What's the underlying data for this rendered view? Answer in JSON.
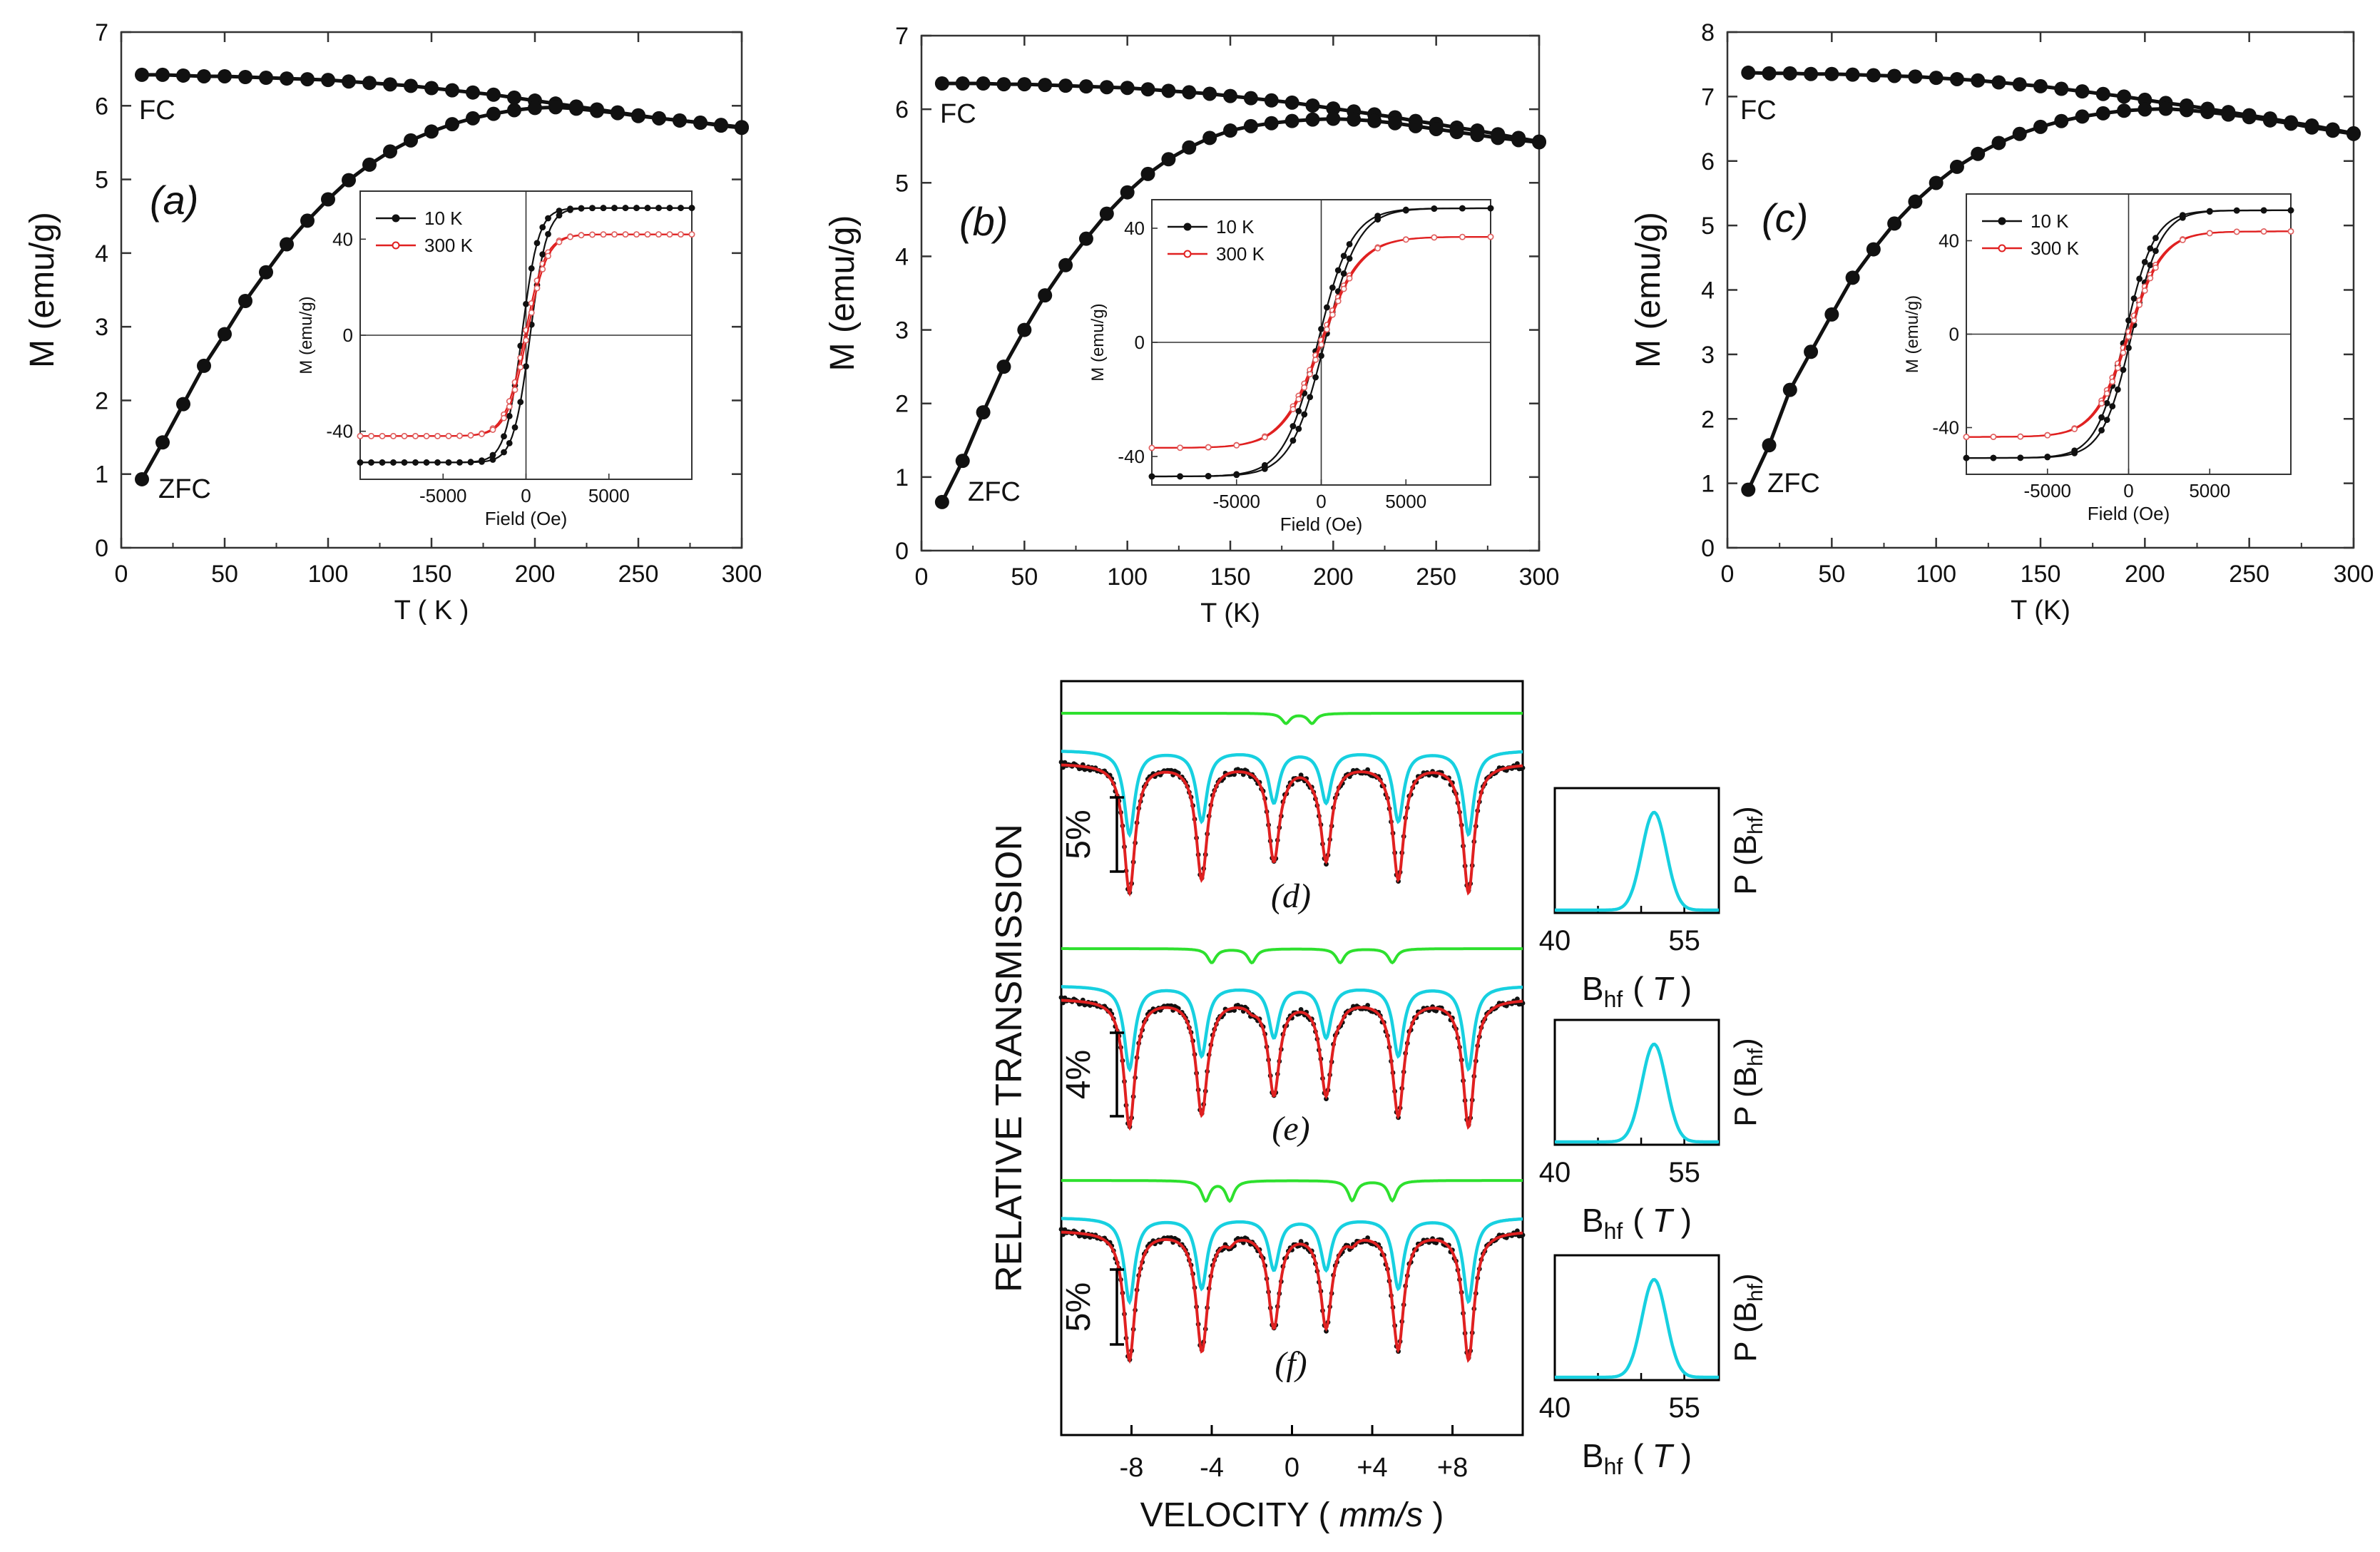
{
  "colors": {
    "black": "#111111",
    "red": "#e02020",
    "red_marker": "#e06060",
    "cyan": "#17d0e0",
    "green": "#2ee02e",
    "axis": "#333333"
  },
  "chart_data": [
    {
      "id": "a",
      "type": "line",
      "panel_label": "(a)",
      "xlabel": "T ( K )",
      "ylabel": "M (emu/g)",
      "xlim": [
        0,
        300
      ],
      "ylim": [
        0,
        7
      ],
      "xticks": [
        0,
        50,
        100,
        150,
        200,
        250,
        300
      ],
      "yticks": [
        0,
        1,
        2,
        3,
        4,
        5,
        6,
        7
      ],
      "annotations": {
        "fc": "FC",
        "zfc": "ZFC"
      },
      "series": [
        {
          "name": "FC",
          "peak_x": 205,
          "x": [
            10,
            20,
            30,
            40,
            50,
            60,
            70,
            80,
            90,
            100,
            110,
            120,
            130,
            140,
            150,
            160,
            170,
            180,
            190,
            200,
            210,
            220,
            230,
            240,
            250,
            260,
            270,
            280,
            290,
            300
          ],
          "values": [
            6.42,
            6.42,
            6.41,
            6.4,
            6.4,
            6.39,
            6.38,
            6.37,
            6.36,
            6.35,
            6.33,
            6.31,
            6.29,
            6.27,
            6.24,
            6.21,
            6.18,
            6.15,
            6.11,
            6.07,
            6.03,
            5.99,
            5.95,
            5.91,
            5.87,
            5.83,
            5.8,
            5.77,
            5.73,
            5.7
          ]
        },
        {
          "name": "ZFC",
          "x": [
            10,
            20,
            30,
            40,
            50,
            60,
            70,
            80,
            90,
            100,
            110,
            120,
            130,
            140,
            150,
            160,
            170,
            180,
            190,
            200,
            210,
            220,
            230,
            240,
            250,
            260,
            270,
            280,
            290,
            300
          ],
          "values": [
            0.93,
            1.43,
            1.95,
            2.47,
            2.9,
            3.35,
            3.74,
            4.12,
            4.44,
            4.73,
            4.99,
            5.2,
            5.38,
            5.53,
            5.65,
            5.75,
            5.83,
            5.89,
            5.94,
            5.97,
            5.98,
            5.96,
            5.93,
            5.9,
            5.86,
            5.83,
            5.8,
            5.77,
            5.74,
            5.71
          ]
        }
      ],
      "inset": {
        "type": "line",
        "xlabel": "Field (Oe)",
        "ylabel": "M (emu/g)",
        "xlim": [
          -10000,
          10000
        ],
        "ylim": [
          -60,
          60
        ],
        "xticks": [
          -5000,
          0,
          5000
        ],
        "xtick_labels": [
          "-5000",
          "0",
          "5000"
        ],
        "yticks": [
          -40,
          0,
          40
        ],
        "ytick_labels": [
          "-40",
          "0",
          "40"
        ],
        "legend": [
          "10 K",
          "300 K"
        ],
        "series": [
          {
            "name": "10 K",
            "ms": 53,
            "hc": 250,
            "h0": 1000,
            "dense": true
          },
          {
            "name": "300 K",
            "ms": 42,
            "hc": 60,
            "h0": 1200,
            "dense": true
          }
        ]
      }
    },
    {
      "id": "b",
      "type": "line",
      "panel_label": "(b)",
      "xlabel": "T (K)",
      "ylabel": "M (emu/g)",
      "xlim": [
        0,
        300
      ],
      "ylim": [
        0,
        7
      ],
      "xticks": [
        0,
        50,
        100,
        150,
        200,
        250,
        300
      ],
      "yticks": [
        0,
        1,
        2,
        3,
        4,
        5,
        6,
        7
      ],
      "annotations": {
        "fc": "FC",
        "zfc": "ZFC"
      },
      "series": [
        {
          "name": "FC",
          "peak_x": 205,
          "x": [
            10,
            20,
            30,
            40,
            50,
            60,
            70,
            80,
            90,
            100,
            110,
            120,
            130,
            140,
            150,
            160,
            170,
            180,
            190,
            200,
            210,
            220,
            230,
            240,
            250,
            260,
            270,
            280,
            290,
            300
          ],
          "values": [
            6.35,
            6.35,
            6.35,
            6.34,
            6.34,
            6.33,
            6.32,
            6.31,
            6.3,
            6.29,
            6.27,
            6.25,
            6.23,
            6.21,
            6.18,
            6.15,
            6.12,
            6.09,
            6.05,
            6.01,
            5.97,
            5.93,
            5.89,
            5.84,
            5.8,
            5.75,
            5.71,
            5.66,
            5.61,
            5.56
          ]
        },
        {
          "name": "ZFC",
          "x": [
            10,
            20,
            30,
            40,
            50,
            60,
            70,
            80,
            90,
            100,
            110,
            120,
            130,
            140,
            150,
            160,
            170,
            180,
            190,
            200,
            210,
            220,
            230,
            240,
            250,
            260,
            270,
            280,
            290,
            300
          ],
          "values": [
            0.66,
            1.22,
            1.88,
            2.5,
            3.0,
            3.47,
            3.88,
            4.24,
            4.58,
            4.87,
            5.12,
            5.32,
            5.48,
            5.61,
            5.71,
            5.77,
            5.81,
            5.84,
            5.86,
            5.87,
            5.86,
            5.84,
            5.81,
            5.77,
            5.73,
            5.69,
            5.65,
            5.61,
            5.58,
            5.55
          ]
        }
      ],
      "inset": {
        "type": "line",
        "xlabel": "Field (Oe)",
        "ylabel": "M (emu/g)",
        "xlim": [
          -10000,
          10000
        ],
        "ylim": [
          -50,
          50
        ],
        "xticks": [
          -5000,
          0,
          5000
        ],
        "xtick_labels": [
          "-5000",
          "0",
          "5000"
        ],
        "yticks": [
          -40,
          0,
          40
        ],
        "ytick_labels": [
          "-40",
          "0",
          "40"
        ],
        "legend": [
          "10 K",
          "300 K"
        ],
        "series": [
          {
            "name": "10 K",
            "ms": 47,
            "hc": 200,
            "h0": 2000,
            "dense": false
          },
          {
            "name": "300 K",
            "ms": 37,
            "hc": 50,
            "h0": 2300,
            "dense": false
          }
        ]
      }
    },
    {
      "id": "c",
      "type": "line",
      "panel_label": "(c)",
      "xlabel": "T (K)",
      "ylabel": "M (emu/g)",
      "xlim": [
        0,
        300
      ],
      "ylim": [
        0,
        8
      ],
      "xticks": [
        0,
        50,
        100,
        150,
        200,
        250,
        300
      ],
      "yticks": [
        0,
        1,
        2,
        3,
        4,
        5,
        6,
        7,
        8
      ],
      "annotations": {
        "fc": "FC",
        "zfc": "ZFC"
      },
      "series": [
        {
          "name": "FC",
          "peak_x": 205,
          "x": [
            10,
            20,
            30,
            40,
            50,
            60,
            70,
            80,
            90,
            100,
            110,
            120,
            130,
            140,
            150,
            160,
            170,
            180,
            190,
            200,
            210,
            220,
            230,
            240,
            250,
            260,
            270,
            280,
            290,
            300
          ],
          "values": [
            7.37,
            7.36,
            7.36,
            7.35,
            7.35,
            7.34,
            7.33,
            7.32,
            7.31,
            7.29,
            7.27,
            7.25,
            7.22,
            7.19,
            7.16,
            7.12,
            7.08,
            7.04,
            7.0,
            6.95,
            6.9,
            6.86,
            6.81,
            6.76,
            6.71,
            6.66,
            6.6,
            6.55,
            6.49,
            6.43
          ]
        },
        {
          "name": "ZFC",
          "x": [
            10,
            20,
            30,
            40,
            50,
            60,
            70,
            80,
            90,
            100,
            110,
            120,
            130,
            140,
            150,
            160,
            170,
            180,
            190,
            200,
            210,
            220,
            230,
            240,
            250,
            260,
            270,
            280,
            290,
            300
          ],
          "values": [
            0.9,
            1.59,
            2.45,
            3.04,
            3.62,
            4.19,
            4.63,
            5.03,
            5.37,
            5.66,
            5.91,
            6.11,
            6.28,
            6.42,
            6.53,
            6.62,
            6.69,
            6.74,
            6.78,
            6.8,
            6.81,
            6.79,
            6.76,
            6.72,
            6.68,
            6.63,
            6.58,
            6.52,
            6.47,
            6.42
          ]
        }
      ],
      "inset": {
        "type": "line",
        "xlabel": "Field (Oe)",
        "ylabel": "M (emu/g)",
        "xlim": [
          -10000,
          10000
        ],
        "ylim": [
          -60,
          60
        ],
        "xticks": [
          -5000,
          0,
          5000
        ],
        "xtick_labels": [
          "-5000",
          "0",
          "5000"
        ],
        "yticks": [
          -40,
          0,
          40
        ],
        "ytick_labels": [
          "-40",
          "0",
          "40"
        ],
        "legend": [
          "10 K",
          "300 K"
        ],
        "series": [
          {
            "name": "10 K",
            "ms": 53,
            "hc": 200,
            "h0": 1800,
            "dense": false
          },
          {
            "name": "300 K",
            "ms": 44,
            "hc": 50,
            "h0": 2100,
            "dense": false
          }
        ]
      }
    },
    {
      "id": "mossbauer",
      "type": "line",
      "xlabel_main": "VELOCITY (",
      "xlabel_units": "mm/s",
      "xlabel_close": ")",
      "ylabel": "RELATIVE TRANSMISSION",
      "xlim": [
        -11.5,
        11.5
      ],
      "xticks": [
        -8,
        -4,
        0,
        4,
        8
      ],
      "xtick_labels": [
        "-8",
        "-4",
        "0",
        "+4",
        "+8"
      ],
      "sextet_lines": [
        -8.1,
        -4.5,
        -0.9,
        1.7,
        5.3,
        8.8
      ],
      "spectra": [
        {
          "label": "(d)",
          "scale_label": "5%",
          "cyan_depth": [
            0.62,
            0.52,
            0.38,
            0.38,
            0.52,
            0.62
          ],
          "green_lines": [
            -0.3,
            1.0
          ],
          "green_depth": 0.5
        },
        {
          "label": "(e)",
          "scale_label": "4%",
          "cyan_depth": [
            0.62,
            0.52,
            0.38,
            0.38,
            0.52,
            0.62
          ],
          "green_lines": [
            -4.0,
            -2.0,
            2.4,
            5.0
          ],
          "green_depth": 0.7
        },
        {
          "label": "(f)",
          "scale_label": "5%",
          "cyan_depth": [
            0.62,
            0.52,
            0.38,
            0.38,
            0.52,
            0.62
          ],
          "green_lines": [
            -4.3,
            -3.1,
            3.0,
            5.0
          ],
          "green_depth": 1.0
        }
      ],
      "distribution": {
        "type": "area",
        "xlabel_main": "B",
        "xlabel_sub": "hf",
        "xlabel_paren_open": "(",
        "xlabel_unit": "T",
        "xlabel_paren_close": ")",
        "ylabel_main": "P (B",
        "ylabel_sub": "hf",
        "ylabel_close": ")",
        "xlim": [
          40,
          59
        ],
        "xtick_labels": [
          "40",
          "55"
        ],
        "xticks": [
          40,
          55
        ],
        "peak_center": 51.5,
        "peak_width": 2.0
      }
    }
  ]
}
